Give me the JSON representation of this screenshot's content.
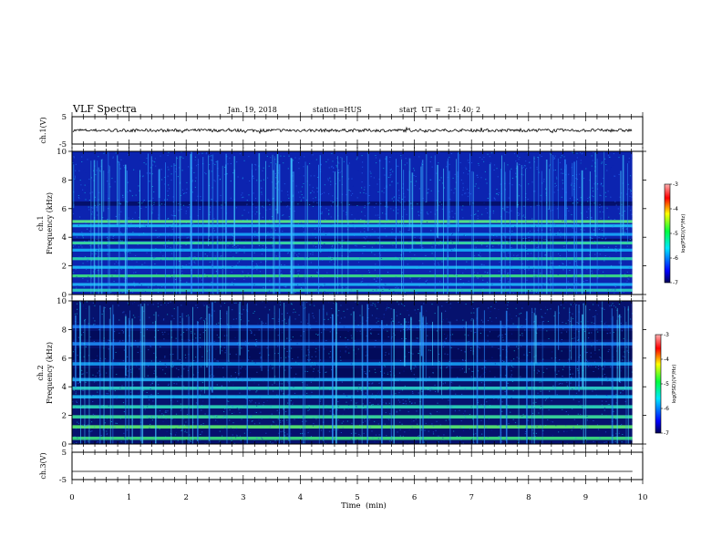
{
  "header": {
    "title": "VLF Spectra",
    "date": "Jan. 19, 2018",
    "station": "station=HUS",
    "start": "start  UT =   21: 40: 2"
  },
  "colors": {
    "spectrogram_background": "#0a1aa0",
    "colormap": [
      "#000055",
      "#0000ff",
      "#00e8ff",
      "#00ff40",
      "#ffff00",
      "#ff0000",
      "#ffb0b0"
    ]
  },
  "chart_data": [
    {
      "type": "line",
      "panel": "ch1-waveform",
      "ylabel": "ch.1(V)",
      "ylim": [
        -5,
        5
      ],
      "yticks": [
        "5",
        "-5"
      ],
      "xlim": [
        0,
        10
      ],
      "description_value": "noisy waveform around 0 V, amplitude about ±0.5 V"
    },
    {
      "type": "heatmap",
      "panel": "ch1-spectrogram",
      "ylabel_line1": "ch.1",
      "ylabel_line2": "Frequency (kHz)",
      "ylim": [
        0,
        10
      ],
      "yticks": [
        "0",
        "2",
        "4",
        "6",
        "8",
        "10"
      ],
      "xlim": [
        0,
        10
      ],
      "data_end_min": 9.82,
      "bands_khz": [
        0.3,
        0.7,
        1.3,
        1.9,
        2.5,
        3.1,
        3.6,
        4.2,
        4.8,
        5.1
      ],
      "colorbar": {
        "label": "log(PSD)(V²/Hz)",
        "range": [
          -7,
          -3
        ],
        "ticks": [
          "-3",
          "-4",
          "-5",
          "-6",
          "-7"
        ]
      }
    },
    {
      "type": "heatmap",
      "panel": "ch2-spectrogram",
      "ylabel_line1": "ch.2",
      "ylabel_line2": "Frequency (kHz)",
      "ylim": [
        0,
        10
      ],
      "yticks": [
        "0",
        "2",
        "4",
        "6",
        "8",
        "10"
      ],
      "xlim": [
        0,
        10
      ],
      "data_end_min": 9.82,
      "bands_khz": [
        0.4,
        1.2,
        1.9,
        2.6,
        3.3,
        3.9,
        4.5,
        5.6,
        7.0,
        8.2
      ],
      "colorbar": {
        "label": "log(PSD)(V²/Hz)",
        "range": [
          -7,
          -3
        ],
        "ticks": [
          "-3",
          "-4",
          "-5",
          "-6",
          "-7"
        ]
      }
    },
    {
      "type": "line",
      "panel": "ch3-waveform",
      "ylabel": "ch.3(V)",
      "ylim": [
        -5,
        5
      ],
      "yticks": [
        "5",
        "-5"
      ],
      "xlim": [
        0,
        10
      ],
      "description_value": "flat line at about -2 V"
    }
  ],
  "xaxis": {
    "label": "Time  (min)",
    "ticks": [
      "0",
      "1",
      "2",
      "3",
      "4",
      "5",
      "6",
      "7",
      "8",
      "9",
      "10"
    ]
  }
}
